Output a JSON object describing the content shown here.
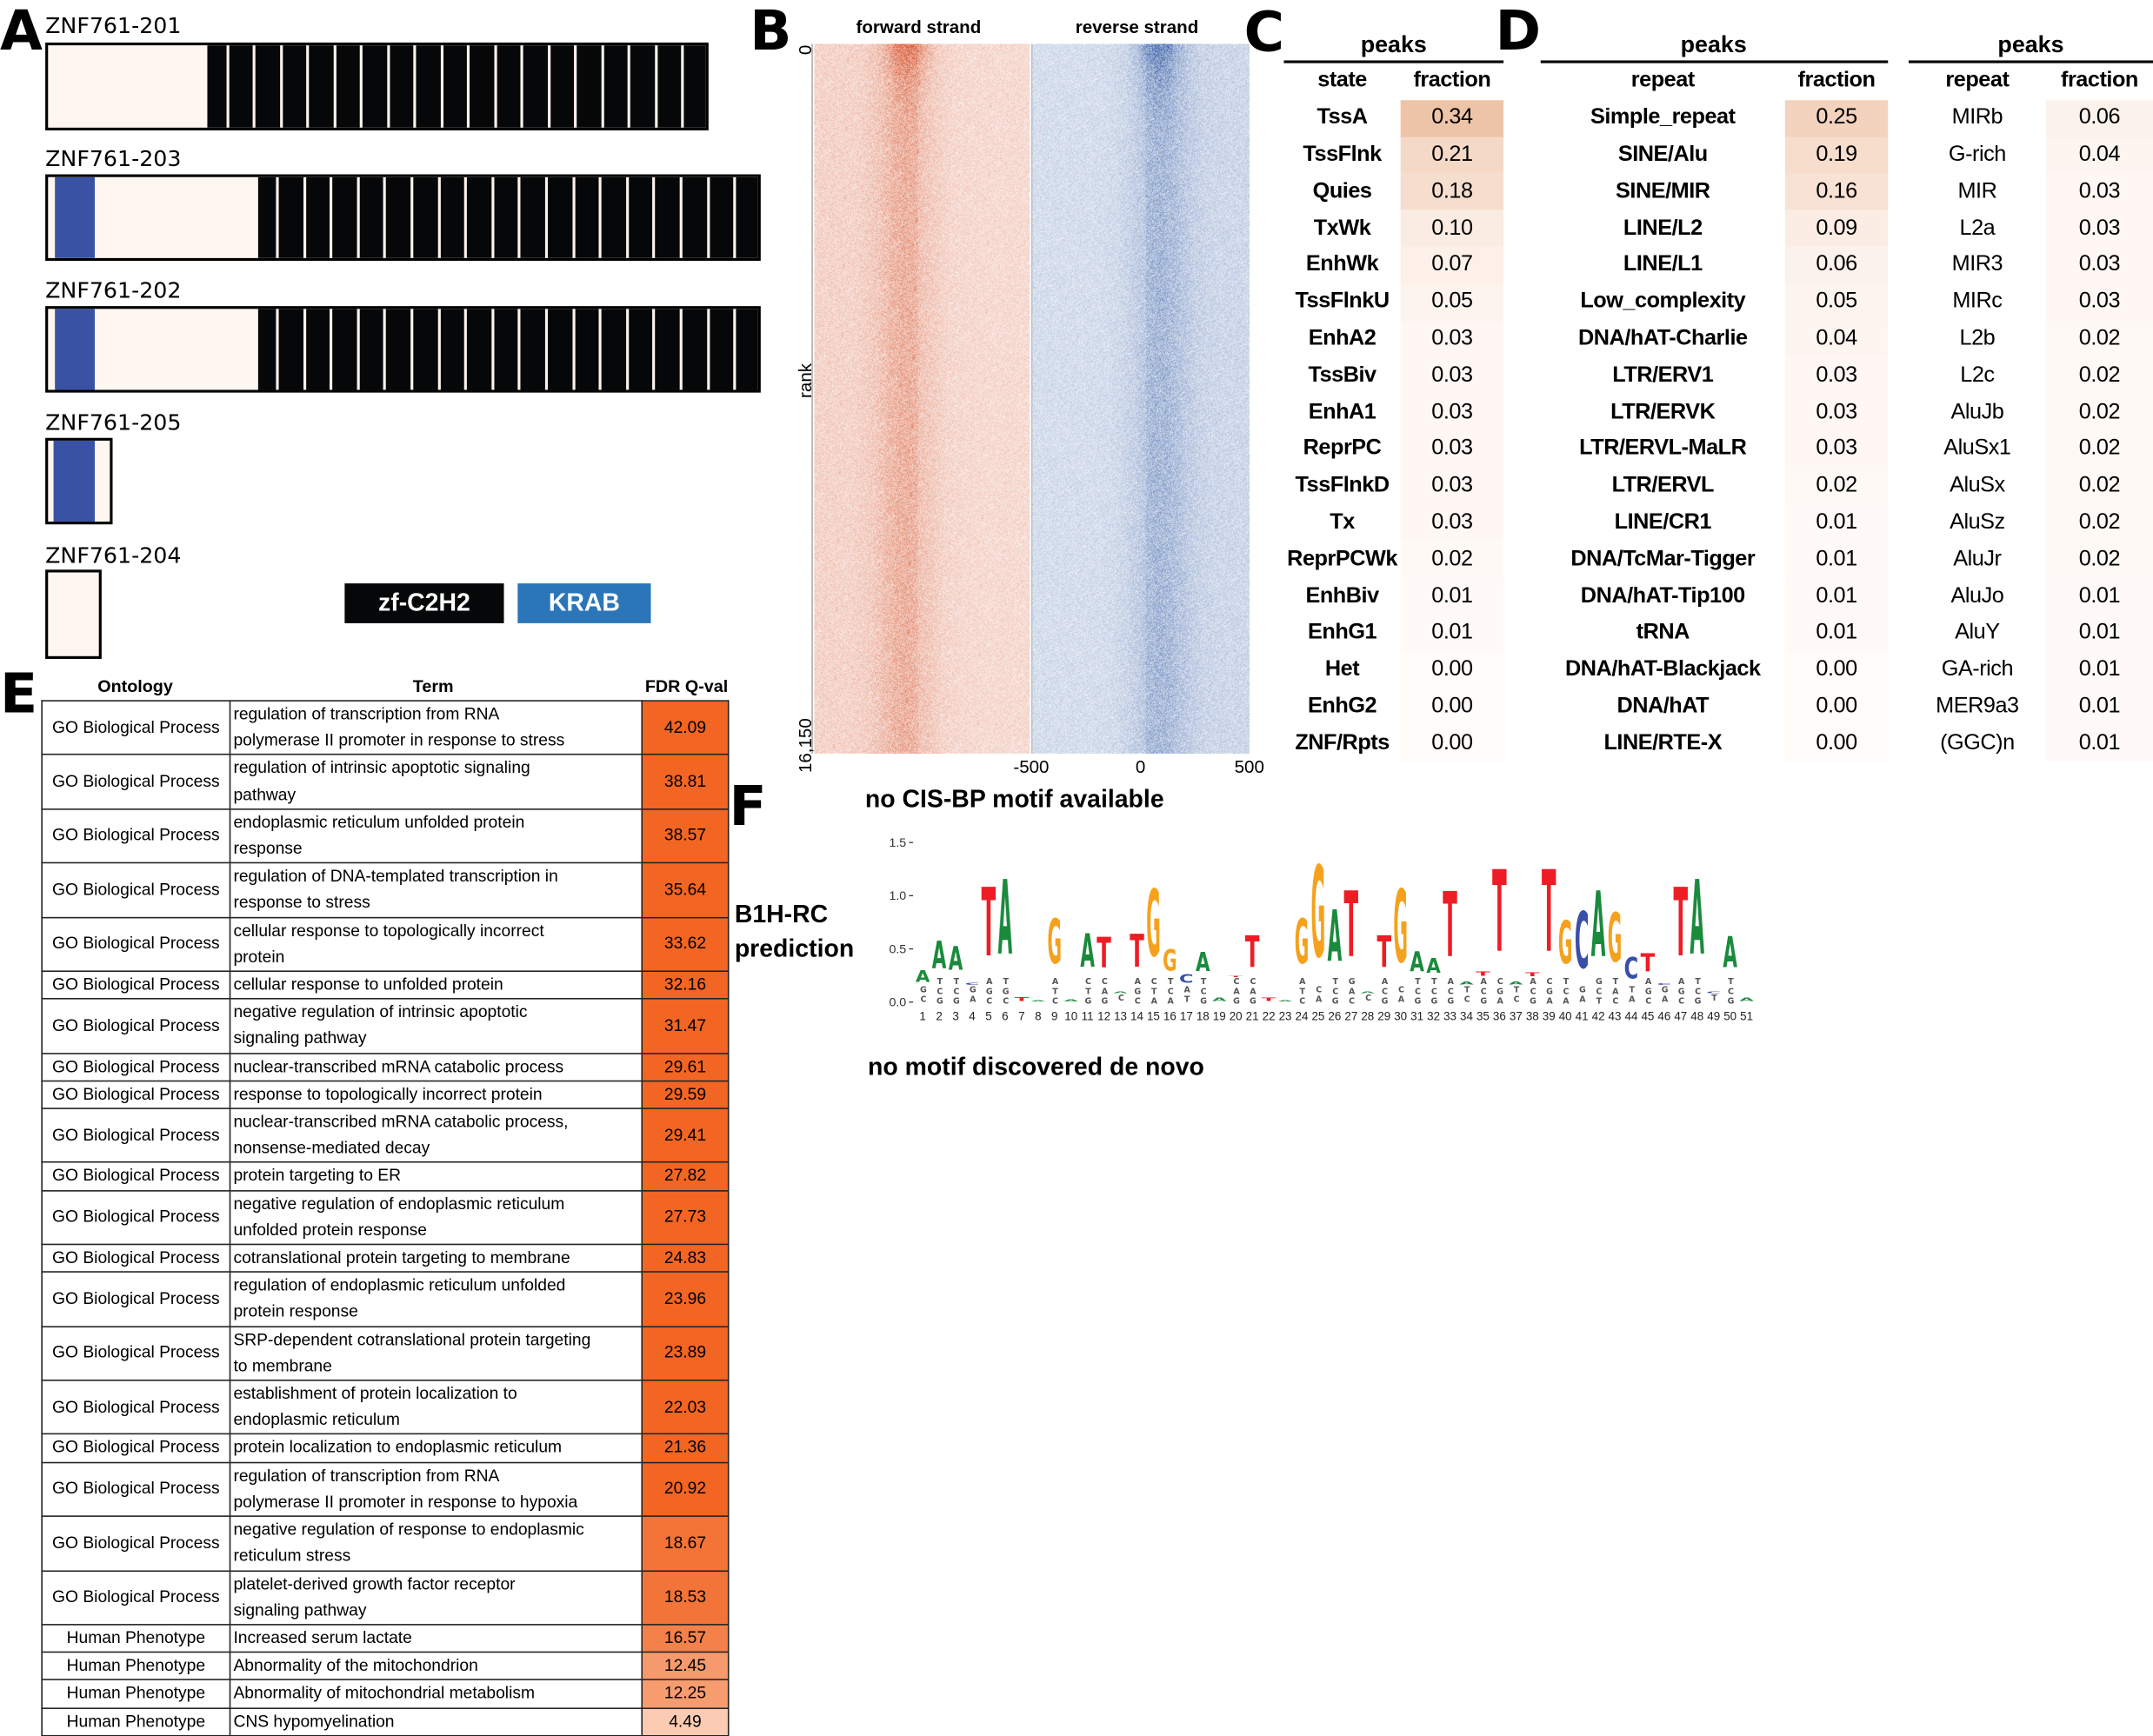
{
  "panel_labels": {
    "a": "A",
    "b": "B",
    "c": "C",
    "d": "D",
    "e": "E",
    "f": "F"
  },
  "panel_a": {
    "transcripts": [
      {
        "name": "ZNF761-201",
        "krab": false,
        "zf_repeats": 19
      },
      {
        "name": "ZNF761-203",
        "krab": true,
        "zf_repeats": 19
      },
      {
        "name": "ZNF761-202",
        "krab": true,
        "zf_repeats": 19
      },
      {
        "name": "ZNF761-205",
        "krab": true,
        "zf_repeats": 0
      },
      {
        "name": "ZNF761-204",
        "krab": false,
        "zf_repeats": 0
      }
    ],
    "legend": [
      {
        "label": "zf-C2H2",
        "color": "#050708"
      },
      {
        "label": "KRAB",
        "color": "#2a76b8"
      }
    ],
    "colors": {
      "background": "#fff6f0",
      "zf": "#050708",
      "krab": "#3a52a3"
    }
  },
  "chart_data": [
    {
      "type": "heatmap",
      "panels": [
        "forward strand",
        "reverse strand"
      ],
      "ylabel": "rank",
      "y_ticks": [
        "0",
        "16,150"
      ],
      "ylim": [
        0,
        16150
      ],
      "x_ticks": [
        "-500",
        "0",
        "500"
      ],
      "xlim": [
        -500,
        500
      ],
      "colors": {
        "forward": "#d9603b",
        "reverse": "#4a6fb0"
      }
    },
    {
      "type": "sequence-logo",
      "title_left": [
        "B1H-RC",
        "prediction"
      ],
      "y_ticks": [
        "0.0",
        "0.5",
        "1.0",
        "1.5"
      ],
      "ylim": [
        0,
        1.5
      ],
      "colors": {
        "A": "#1a8a3c",
        "C": "#3a4fa8",
        "G": "#f5a11c",
        "T": "#ee1c25"
      },
      "positions": [
        {
          "top": "A",
          "h": 0.33,
          "minor": "GC"
        },
        {
          "top": "A",
          "h": 0.65,
          "minor": "TCG"
        },
        {
          "top": "A",
          "h": 0.59,
          "minor": "TCG"
        },
        {
          "top": "C",
          "h": 0.19,
          "minor": "GA"
        },
        {
          "top": "T",
          "h": 1.26,
          "minor": "AGC"
        },
        {
          "top": "A",
          "h": 1.35,
          "minor": "TGC"
        },
        {
          "top": "T",
          "h": 0.06,
          "minor": ""
        },
        {
          "top": "A",
          "h": 0.02,
          "minor": ""
        },
        {
          "top": "G",
          "h": 0.9,
          "minor": "ATC"
        },
        {
          "top": "A",
          "h": 0.03,
          "minor": ""
        },
        {
          "top": "A",
          "h": 0.73,
          "minor": "CTG"
        },
        {
          "top": "T",
          "h": 0.69,
          "minor": "CAG"
        },
        {
          "top": "A",
          "h": 0.1,
          "minor": "C"
        },
        {
          "top": "T",
          "h": 0.72,
          "minor": "AGC"
        },
        {
          "top": "G",
          "h": 1.24,
          "minor": "CTA"
        },
        {
          "top": "G",
          "h": 0.55,
          "minor": "TCA"
        },
        {
          "top": "C",
          "h": 0.28,
          "minor": "AT"
        },
        {
          "top": "A",
          "h": 0.52,
          "minor": "TCG"
        },
        {
          "top": "A",
          "h": 0.05,
          "minor": ""
        },
        {
          "top": "T",
          "h": 0.24,
          "minor": "CAG"
        },
        {
          "top": "T",
          "h": 0.71,
          "minor": "CAG"
        },
        {
          "top": "T",
          "h": 0.05,
          "minor": ""
        },
        {
          "top": "A",
          "h": 0.02,
          "minor": ""
        },
        {
          "top": "G",
          "h": 0.9,
          "minor": "ATC"
        },
        {
          "top": "G",
          "h": 1.53,
          "minor": "CA"
        },
        {
          "top": "A",
          "h": 1.0,
          "minor": "TCG"
        },
        {
          "top": "T",
          "h": 1.22,
          "minor": "GAC"
        },
        {
          "top": "A",
          "h": 0.1,
          "minor": "C"
        },
        {
          "top": "T",
          "h": 0.71,
          "minor": "ACG"
        },
        {
          "top": "G",
          "h": 1.25,
          "minor": "CA"
        },
        {
          "top": "A",
          "h": 0.53,
          "minor": "TCG"
        },
        {
          "top": "A",
          "h": 0.45,
          "minor": "TCG"
        },
        {
          "top": "T",
          "h": 1.21,
          "minor": "ACG"
        },
        {
          "top": "A",
          "h": 0.2,
          "minor": "TC"
        },
        {
          "top": "T",
          "h": 0.3,
          "minor": "ACG"
        },
        {
          "top": "T",
          "h": 1.46,
          "minor": "CGA"
        },
        {
          "top": "A",
          "h": 0.2,
          "minor": "TC"
        },
        {
          "top": "T",
          "h": 0.29,
          "minor": "ACG"
        },
        {
          "top": "T",
          "h": 1.46,
          "minor": "CGA"
        },
        {
          "top": "G",
          "h": 0.88,
          "minor": "TCA"
        },
        {
          "top": "C",
          "h": 1.0,
          "minor": "GA"
        },
        {
          "top": "A",
          "h": 1.22,
          "minor": "GCT"
        },
        {
          "top": "G",
          "h": 0.97,
          "minor": "TAC"
        },
        {
          "top": "C",
          "h": 0.48,
          "minor": "TA"
        },
        {
          "top": "T",
          "h": 0.5,
          "minor": "AGC"
        },
        {
          "top": "C",
          "h": 0.18,
          "minor": "GA"
        },
        {
          "top": "T",
          "h": 1.26,
          "minor": "AGC"
        },
        {
          "top": "A",
          "h": 1.35,
          "minor": "TCG"
        },
        {
          "top": "C",
          "h": 0.1,
          "minor": "T"
        },
        {
          "top": "A",
          "h": 0.7,
          "minor": "TCG"
        },
        {
          "top": "A",
          "h": 0.05,
          "minor": ""
        }
      ]
    }
  ],
  "panel_c": {
    "group_header": "peaks",
    "columns": [
      "state",
      "fraction"
    ],
    "rows": [
      [
        "TssA",
        "0.34"
      ],
      [
        "TssFlnk",
        "0.21"
      ],
      [
        "Quies",
        "0.18"
      ],
      [
        "TxWk",
        "0.10"
      ],
      [
        "EnhWk",
        "0.07"
      ],
      [
        "TssFlnkU",
        "0.05"
      ],
      [
        "EnhA2",
        "0.03"
      ],
      [
        "TssBiv",
        "0.03"
      ],
      [
        "EnhA1",
        "0.03"
      ],
      [
        "ReprPC",
        "0.03"
      ],
      [
        "TssFlnkD",
        "0.03"
      ],
      [
        "Tx",
        "0.03"
      ],
      [
        "ReprPCWk",
        "0.02"
      ],
      [
        "EnhBiv",
        "0.01"
      ],
      [
        "EnhG1",
        "0.01"
      ],
      [
        "Het",
        "0.00"
      ],
      [
        "EnhG2",
        "0.00"
      ],
      [
        "ZNF/Rpts",
        "0.00"
      ]
    ]
  },
  "panel_d": [
    {
      "group_header": "peaks",
      "columns": [
        "repeat",
        "fraction"
      ],
      "rows": [
        [
          "Simple_repeat",
          "0.25"
        ],
        [
          "SINE/Alu",
          "0.19"
        ],
        [
          "SINE/MIR",
          "0.16"
        ],
        [
          "LINE/L2",
          "0.09"
        ],
        [
          "LINE/L1",
          "0.06"
        ],
        [
          "Low_complexity",
          "0.05"
        ],
        [
          "DNA/hAT-Charlie",
          "0.04"
        ],
        [
          "LTR/ERV1",
          "0.03"
        ],
        [
          "LTR/ERVK",
          "0.03"
        ],
        [
          "LTR/ERVL-MaLR",
          "0.03"
        ],
        [
          "LTR/ERVL",
          "0.02"
        ],
        [
          "LINE/CR1",
          "0.01"
        ],
        [
          "DNA/TcMar-Tigger",
          "0.01"
        ],
        [
          "DNA/hAT-Tip100",
          "0.01"
        ],
        [
          "tRNA",
          "0.01"
        ],
        [
          "DNA/hAT-Blackjack",
          "0.00"
        ],
        [
          "DNA/hAT",
          "0.00"
        ],
        [
          "LINE/RTE-X",
          "0.00"
        ]
      ]
    },
    {
      "group_header": "peaks",
      "columns": [
        "repeat",
        "fraction"
      ],
      "rows": [
        [
          "MIRb",
          "0.06"
        ],
        [
          "G-rich",
          "0.04"
        ],
        [
          "MIR",
          "0.03"
        ],
        [
          "L2a",
          "0.03"
        ],
        [
          "MIR3",
          "0.03"
        ],
        [
          "MIRc",
          "0.03"
        ],
        [
          "L2b",
          "0.02"
        ],
        [
          "L2c",
          "0.02"
        ],
        [
          "AluJb",
          "0.02"
        ],
        [
          "AluSx1",
          "0.02"
        ],
        [
          "AluSx",
          "0.02"
        ],
        [
          "AluSz",
          "0.02"
        ],
        [
          "AluJr",
          "0.02"
        ],
        [
          "AluJo",
          "0.01"
        ],
        [
          "AluY",
          "0.01"
        ],
        [
          "GA-rich",
          "0.01"
        ],
        [
          "MER9a3",
          "0.01"
        ],
        [
          "(GGC)n",
          "0.01"
        ]
      ]
    }
  ],
  "panel_e": {
    "columns": [
      "Ontology",
      "Term",
      "FDR Q-val"
    ],
    "rows": [
      {
        "ontology": "GO Biological Process",
        "term": [
          "regulation of transcription from RNA",
          "polymerase II promoter in response to stress"
        ],
        "fdr": "42.09"
      },
      {
        "ontology": "GO Biological Process",
        "term": [
          "regulation of intrinsic apoptotic signaling",
          "pathway"
        ],
        "fdr": "38.81"
      },
      {
        "ontology": "GO Biological Process",
        "term": [
          "endoplasmic reticulum unfolded protein",
          "response"
        ],
        "fdr": "38.57"
      },
      {
        "ontology": "GO Biological Process",
        "term": [
          "regulation of DNA-templated transcription in",
          "response to stress"
        ],
        "fdr": "35.64"
      },
      {
        "ontology": "GO Biological Process",
        "term": [
          "cellular response to topologically incorrect",
          "protein"
        ],
        "fdr": "33.62"
      },
      {
        "ontology": "GO Biological Process",
        "term": [
          "cellular response to unfolded protein"
        ],
        "fdr": "32.16"
      },
      {
        "ontology": "GO Biological Process",
        "term": [
          "negative regulation of intrinsic apoptotic",
          "signaling pathway"
        ],
        "fdr": "31.47"
      },
      {
        "ontology": "GO Biological Process",
        "term": [
          "nuclear-transcribed mRNA catabolic process"
        ],
        "fdr": "29.61"
      },
      {
        "ontology": "GO Biological Process",
        "term": [
          "response to topologically incorrect protein"
        ],
        "fdr": "29.59"
      },
      {
        "ontology": "GO Biological Process",
        "term": [
          "nuclear-transcribed mRNA catabolic process,",
          "nonsense-mediated decay"
        ],
        "fdr": "29.41"
      },
      {
        "ontology": "GO Biological Process",
        "term": [
          "protein targeting to ER"
        ],
        "fdr": "27.82"
      },
      {
        "ontology": "GO Biological Process",
        "term": [
          "negative regulation of endoplasmic reticulum",
          "unfolded protein response"
        ],
        "fdr": "27.73"
      },
      {
        "ontology": "GO Biological Process",
        "term": [
          "cotranslational protein targeting to membrane"
        ],
        "fdr": "24.83"
      },
      {
        "ontology": "GO Biological Process",
        "term": [
          "regulation of endoplasmic reticulum unfolded",
          "protein response"
        ],
        "fdr": "23.96"
      },
      {
        "ontology": "GO Biological Process",
        "term": [
          "SRP-dependent cotranslational protein targeting",
          "to membrane"
        ],
        "fdr": "23.89"
      },
      {
        "ontology": "GO Biological Process",
        "term": [
          "establishment of protein localization to",
          "endoplasmic reticulum"
        ],
        "fdr": "22.03"
      },
      {
        "ontology": "GO Biological Process",
        "term": [
          "protein localization to endoplasmic reticulum"
        ],
        "fdr": "21.36"
      },
      {
        "ontology": "GO Biological Process",
        "term": [
          "regulation of transcription from RNA",
          "polymerase II promoter in response to hypoxia"
        ],
        "fdr": "20.92"
      },
      {
        "ontology": "GO Biological Process",
        "term": [
          "negative regulation of response to endoplasmic",
          "reticulum stress"
        ],
        "fdr": "18.67"
      },
      {
        "ontology": "GO Biological Process",
        "term": [
          "platelet-derived growth factor receptor",
          "signaling pathway"
        ],
        "fdr": "18.53"
      },
      {
        "ontology": "Human Phenotype",
        "term": [
          "Increased serum lactate"
        ],
        "fdr": "16.57"
      },
      {
        "ontology": "Human Phenotype",
        "term": [
          "Abnormality of the mitochondrion"
        ],
        "fdr": "12.45"
      },
      {
        "ontology": "Human Phenotype",
        "term": [
          "Abnormality of mitochondrial metabolism"
        ],
        "fdr": "12.25"
      },
      {
        "ontology": "Human Phenotype",
        "term": [
          "CNS hypomyelination"
        ],
        "fdr": "4.49"
      }
    ]
  },
  "panel_f": {
    "cisbp_text": "no CIS-BP motif available",
    "denovo_text": "no motif discovered de novo"
  }
}
